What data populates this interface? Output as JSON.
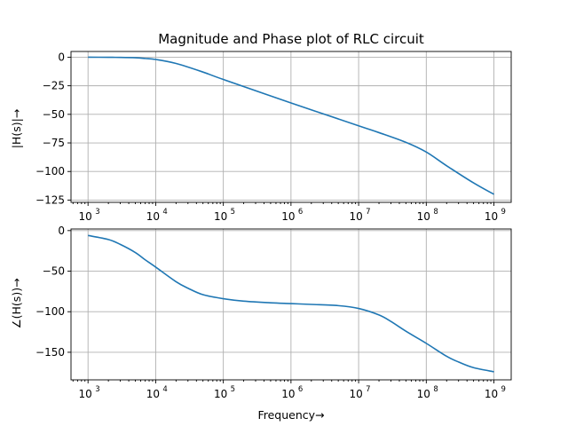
{
  "chart_data": [
    {
      "type": "line",
      "title": "Magnitude and Phase plot of RLC circuit",
      "xlabel": "",
      "ylabel": "|H(s)|→",
      "xscale": "log",
      "xlim": [
        560,
        1800000000.0
      ],
      "ylim": [
        -127,
        5
      ],
      "grid": true,
      "color": "#1f77b4",
      "x_ticks": [
        {
          "base": "10",
          "exp": "3",
          "value": 1000.0
        },
        {
          "base": "10",
          "exp": "4",
          "value": 10000.0
        },
        {
          "base": "10",
          "exp": "5",
          "value": 100000.0
        },
        {
          "base": "10",
          "exp": "6",
          "value": 1000000.0
        },
        {
          "base": "10",
          "exp": "7",
          "value": 10000000.0
        },
        {
          "base": "10",
          "exp": "8",
          "value": 100000000.0
        },
        {
          "base": "10",
          "exp": "9",
          "value": 1000000000.0
        }
      ],
      "y_ticks": [
        {
          "label": "0",
          "value": 0
        },
        {
          "label": "−25",
          "value": -25
        },
        {
          "label": "−50",
          "value": -50
        },
        {
          "label": "−75",
          "value": -75
        },
        {
          "label": "−100",
          "value": -100
        },
        {
          "label": "−125",
          "value": -125
        }
      ],
      "series": [
        {
          "x": [
            1000.0,
            2000.0,
            3000.0,
            5000.0,
            7000.0,
            10000.0,
            20000.0,
            50000.0,
            100000.0,
            1000000.0,
            10000000.0,
            20000000.0,
            50000000.0,
            100000000.0,
            200000000.0,
            500000000.0,
            1000000000.0
          ],
          "y": [
            0,
            -0.1,
            -0.2,
            -0.5,
            -1.1,
            -2.0,
            -5.5,
            -13,
            -19.5,
            -40,
            -60,
            -66,
            -74.5,
            -83,
            -95,
            -110,
            -120
          ]
        }
      ]
    },
    {
      "type": "line",
      "title": "",
      "xlabel": "Frequency→",
      "ylabel": "∠(H(s))→",
      "xscale": "log",
      "xlim": [
        560,
        1800000000.0
      ],
      "ylim": [
        -184,
        2
      ],
      "grid": true,
      "color": "#1f77b4",
      "x_ticks": [
        {
          "base": "10",
          "exp": "3",
          "value": 1000.0
        },
        {
          "base": "10",
          "exp": "4",
          "value": 10000.0
        },
        {
          "base": "10",
          "exp": "5",
          "value": 100000.0
        },
        {
          "base": "10",
          "exp": "6",
          "value": 1000000.0
        },
        {
          "base": "10",
          "exp": "7",
          "value": 10000000.0
        },
        {
          "base": "10",
          "exp": "8",
          "value": 100000000.0
        },
        {
          "base": "10",
          "exp": "9",
          "value": 1000000000.0
        }
      ],
      "y_ticks": [
        {
          "label": "0",
          "value": 0
        },
        {
          "label": "−50",
          "value": -50
        },
        {
          "label": "−100",
          "value": -100
        },
        {
          "label": "−150",
          "value": -150
        }
      ],
      "series": [
        {
          "x": [
            1000.0,
            2000.0,
            3000.0,
            5000.0,
            7000.0,
            10000.0,
            20000.0,
            30000.0,
            50000.0,
            100000.0,
            200000.0,
            500000.0,
            1000000.0,
            2000000.0,
            5000000.0,
            10000000.0,
            20000000.0,
            30000000.0,
            50000000.0,
            100000000.0,
            200000000.0,
            300000000.0,
            500000000.0,
            1000000000.0
          ],
          "y": [
            -6,
            -11,
            -17,
            -27,
            -36,
            -45,
            -63,
            -71,
            -79,
            -84,
            -87,
            -89,
            -90,
            -91,
            -92.5,
            -96,
            -104,
            -112,
            -124,
            -139,
            -155,
            -162,
            -169,
            -174
          ]
        }
      ]
    }
  ]
}
